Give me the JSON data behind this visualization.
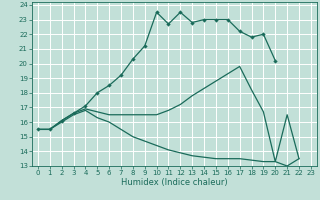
{
  "xlabel": "Humidex (Indice chaleur)",
  "bg_color": "#c2e0d8",
  "grid_color": "#ffffff",
  "line_color": "#1a6b5a",
  "xlim": [
    -0.5,
    23.5
  ],
  "ylim": [
    13,
    24.2
  ],
  "xticks": [
    0,
    1,
    2,
    3,
    4,
    5,
    6,
    7,
    8,
    9,
    10,
    11,
    12,
    13,
    14,
    15,
    16,
    17,
    18,
    19,
    20,
    21,
    22,
    23
  ],
  "yticks": [
    13,
    14,
    15,
    16,
    17,
    18,
    19,
    20,
    21,
    22,
    23,
    24
  ],
  "line1_x": [
    0,
    1,
    2,
    3,
    4,
    5,
    6,
    7,
    8,
    9,
    10,
    11,
    12,
    13,
    14,
    15,
    16,
    17,
    18,
    19,
    20
  ],
  "line1_y": [
    15.5,
    15.5,
    16.1,
    16.6,
    17.1,
    18.0,
    18.5,
    19.2,
    20.3,
    21.2,
    23.5,
    22.7,
    23.5,
    22.8,
    23.0,
    23.0,
    23.0,
    22.2,
    21.8,
    22.0,
    20.2
  ],
  "line2_x": [
    0,
    1,
    2,
    3,
    4,
    5,
    6,
    7,
    8,
    9,
    10,
    11,
    12,
    13,
    14,
    15,
    16,
    17,
    18,
    19,
    20,
    21,
    22
  ],
  "line2_y": [
    15.5,
    15.5,
    16.1,
    16.6,
    16.9,
    16.7,
    16.5,
    16.5,
    16.5,
    16.5,
    16.5,
    16.8,
    17.2,
    17.8,
    18.3,
    18.8,
    19.3,
    19.8,
    18.2,
    16.7,
    13.3,
    16.5,
    13.5
  ],
  "line3_x": [
    0,
    1,
    2,
    3,
    4,
    5,
    6,
    7,
    8,
    9,
    10,
    11,
    12,
    13,
    14,
    15,
    16,
    17,
    18,
    19,
    20,
    21,
    22
  ],
  "line3_y": [
    15.5,
    15.5,
    16.0,
    16.5,
    16.8,
    16.3,
    16.0,
    15.5,
    15.0,
    14.7,
    14.4,
    14.1,
    13.9,
    13.7,
    13.6,
    13.5,
    13.5,
    13.5,
    13.4,
    13.3,
    13.3,
    13.0,
    13.5
  ]
}
